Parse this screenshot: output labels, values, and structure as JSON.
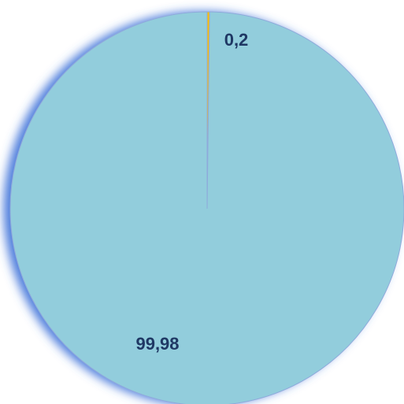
{
  "chart_data": {
    "type": "pie",
    "values": [
      0.2,
      99.98
    ],
    "value_labels": [
      "0,2",
      "99,98"
    ],
    "colors": [
      "#ffc000",
      "#92cddc"
    ]
  }
}
